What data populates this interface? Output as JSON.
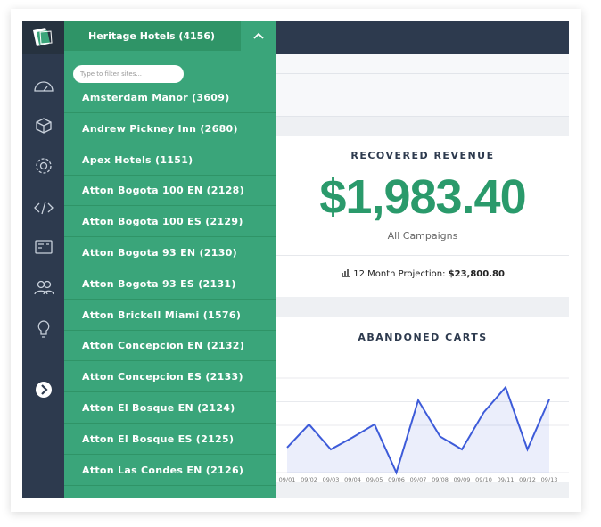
{
  "dropdown": {
    "selected": "Heritage Hotels (4156)",
    "filter_placeholder": "Type to filter sites...",
    "items": [
      "Amsterdam Manor (3609)",
      "Andrew Pickney Inn (2680)",
      "Apex Hotels (1151)",
      "Atton Bogota 100 EN (2128)",
      "Atton Bogota 100 ES (2129)",
      "Atton Bogota 93 EN (2130)",
      "Atton Bogota 93 ES (2131)",
      "Atton Brickell Miami (1576)",
      "Atton Concepcion EN (2132)",
      "Atton Concepcion ES (2133)",
      "Atton El Bosque EN (2124)",
      "Atton El Bosque ES (2125)",
      "Atton Las Condes EN (2126)"
    ]
  },
  "recovered_revenue": {
    "title": "RECOVERED REVENUE",
    "amount": "$1,983.40",
    "subtitle": "All Campaigns",
    "projection_label": "12 Month Projection:",
    "projection_value": "$23,800.80"
  },
  "abandoned_carts": {
    "type": "line",
    "title": "ABANDONED CARTS",
    "color": "#3d5bd9",
    "x": [
      "09/01",
      "09/02",
      "09/03",
      "09/04",
      "09/05",
      "09/06",
      "09/07",
      "09/08",
      "09/09",
      "09/10",
      "09/11",
      "09/12",
      "09/13"
    ],
    "values": [
      27,
      52,
      25,
      38,
      52,
      0,
      78,
      39,
      25,
      65,
      92,
      25,
      79
    ],
    "ylim": [
      0,
      100
    ]
  }
}
